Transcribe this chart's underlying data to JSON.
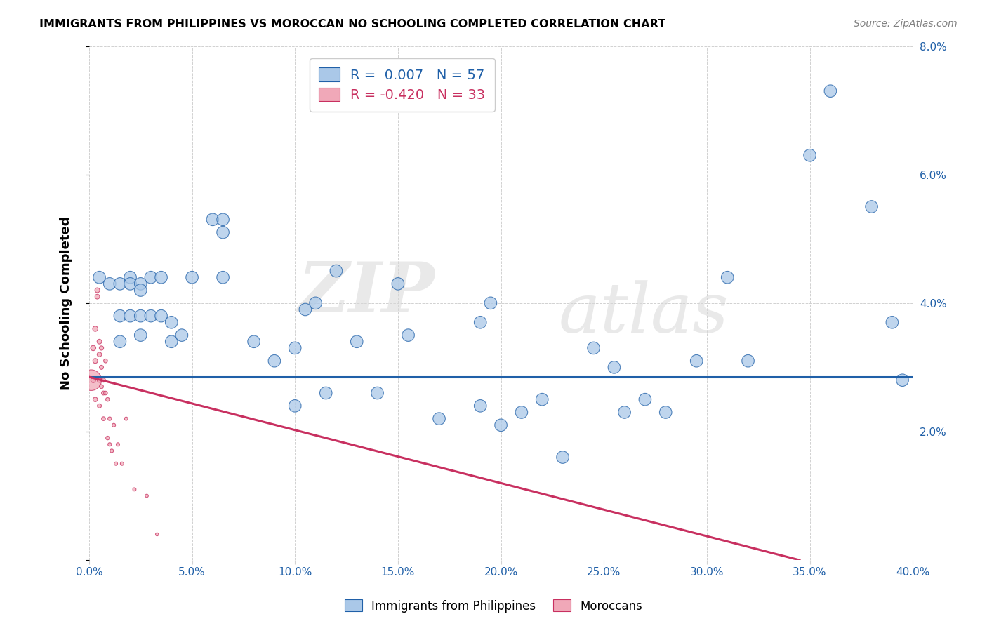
{
  "title": "IMMIGRANTS FROM PHILIPPINES VS MOROCCAN NO SCHOOLING COMPLETED CORRELATION CHART",
  "source": "Source: ZipAtlas.com",
  "ylabel": "No Schooling Completed",
  "xlim": [
    0,
    0.4
  ],
  "ylim": [
    0,
    0.08
  ],
  "xticks": [
    0.0,
    0.05,
    0.1,
    0.15,
    0.2,
    0.25,
    0.3,
    0.35,
    0.4
  ],
  "yticks": [
    0.0,
    0.02,
    0.04,
    0.06,
    0.08
  ],
  "legend_series1_label": "Immigrants from Philippines",
  "legend_series2_label": "Moroccans",
  "R1": 0.007,
  "N1": 57,
  "R2": -0.42,
  "N2": 33,
  "blue_color": "#aac8e8",
  "pink_color": "#f0a8b8",
  "blue_line_color": "#2060a8",
  "pink_line_color": "#c83060",
  "blue_trend_y_start": 0.0285,
  "blue_trend_y_end": 0.0285,
  "pink_trend_x_start": 0.0,
  "pink_trend_y_start": 0.0285,
  "pink_trend_x_end": 0.345,
  "pink_trend_y_end": 0.0,
  "watermark_zip": "ZIP",
  "watermark_atlas": "atlas",
  "philippines_x": [
    0.005,
    0.01,
    0.015,
    0.015,
    0.015,
    0.02,
    0.02,
    0.02,
    0.025,
    0.025,
    0.025,
    0.025,
    0.03,
    0.03,
    0.035,
    0.035,
    0.04,
    0.04,
    0.045,
    0.05,
    0.06,
    0.065,
    0.065,
    0.065,
    0.08,
    0.09,
    0.1,
    0.1,
    0.105,
    0.11,
    0.115,
    0.12,
    0.13,
    0.14,
    0.15,
    0.155,
    0.17,
    0.19,
    0.19,
    0.195,
    0.2,
    0.21,
    0.22,
    0.23,
    0.245,
    0.255,
    0.26,
    0.27,
    0.28,
    0.295,
    0.31,
    0.32,
    0.35,
    0.36,
    0.38,
    0.39,
    0.395
  ],
  "philippines_y": [
    0.044,
    0.043,
    0.043,
    0.038,
    0.034,
    0.044,
    0.043,
    0.038,
    0.043,
    0.042,
    0.038,
    0.035,
    0.038,
    0.044,
    0.038,
    0.044,
    0.037,
    0.034,
    0.035,
    0.044,
    0.053,
    0.053,
    0.051,
    0.044,
    0.034,
    0.031,
    0.033,
    0.024,
    0.039,
    0.04,
    0.026,
    0.045,
    0.034,
    0.026,
    0.043,
    0.035,
    0.022,
    0.024,
    0.037,
    0.04,
    0.021,
    0.023,
    0.025,
    0.016,
    0.033,
    0.03,
    0.023,
    0.025,
    0.023,
    0.031,
    0.044,
    0.031,
    0.063,
    0.073,
    0.055,
    0.037,
    0.028
  ],
  "philippines_size": [
    160,
    160,
    160,
    160,
    160,
    160,
    160,
    160,
    160,
    160,
    160,
    160,
    160,
    160,
    160,
    160,
    160,
    160,
    160,
    160,
    160,
    160,
    160,
    160,
    160,
    160,
    160,
    160,
    160,
    160,
    160,
    160,
    160,
    160,
    160,
    160,
    160,
    160,
    160,
    160,
    160,
    160,
    160,
    160,
    160,
    160,
    160,
    160,
    160,
    160,
    160,
    160,
    160,
    160,
    160,
    160,
    160
  ],
  "moroccan_x": [
    0.001,
    0.002,
    0.002,
    0.003,
    0.003,
    0.003,
    0.004,
    0.004,
    0.005,
    0.005,
    0.005,
    0.005,
    0.006,
    0.006,
    0.006,
    0.007,
    0.007,
    0.007,
    0.008,
    0.008,
    0.009,
    0.009,
    0.01,
    0.01,
    0.011,
    0.012,
    0.013,
    0.014,
    0.016,
    0.018,
    0.022,
    0.028,
    0.033
  ],
  "moroccan_y": [
    0.028,
    0.033,
    0.028,
    0.036,
    0.031,
    0.025,
    0.042,
    0.041,
    0.034,
    0.032,
    0.028,
    0.024,
    0.033,
    0.03,
    0.027,
    0.028,
    0.026,
    0.022,
    0.031,
    0.026,
    0.025,
    0.019,
    0.022,
    0.018,
    0.017,
    0.021,
    0.015,
    0.018,
    0.015,
    0.022,
    0.011,
    0.01,
    0.004
  ],
  "moroccan_size": [
    2500,
    160,
    140,
    160,
    140,
    120,
    140,
    130,
    130,
    120,
    110,
    100,
    110,
    100,
    95,
    100,
    95,
    90,
    90,
    85,
    85,
    80,
    80,
    75,
    75,
    75,
    70,
    70,
    70,
    65,
    65,
    60,
    55
  ]
}
